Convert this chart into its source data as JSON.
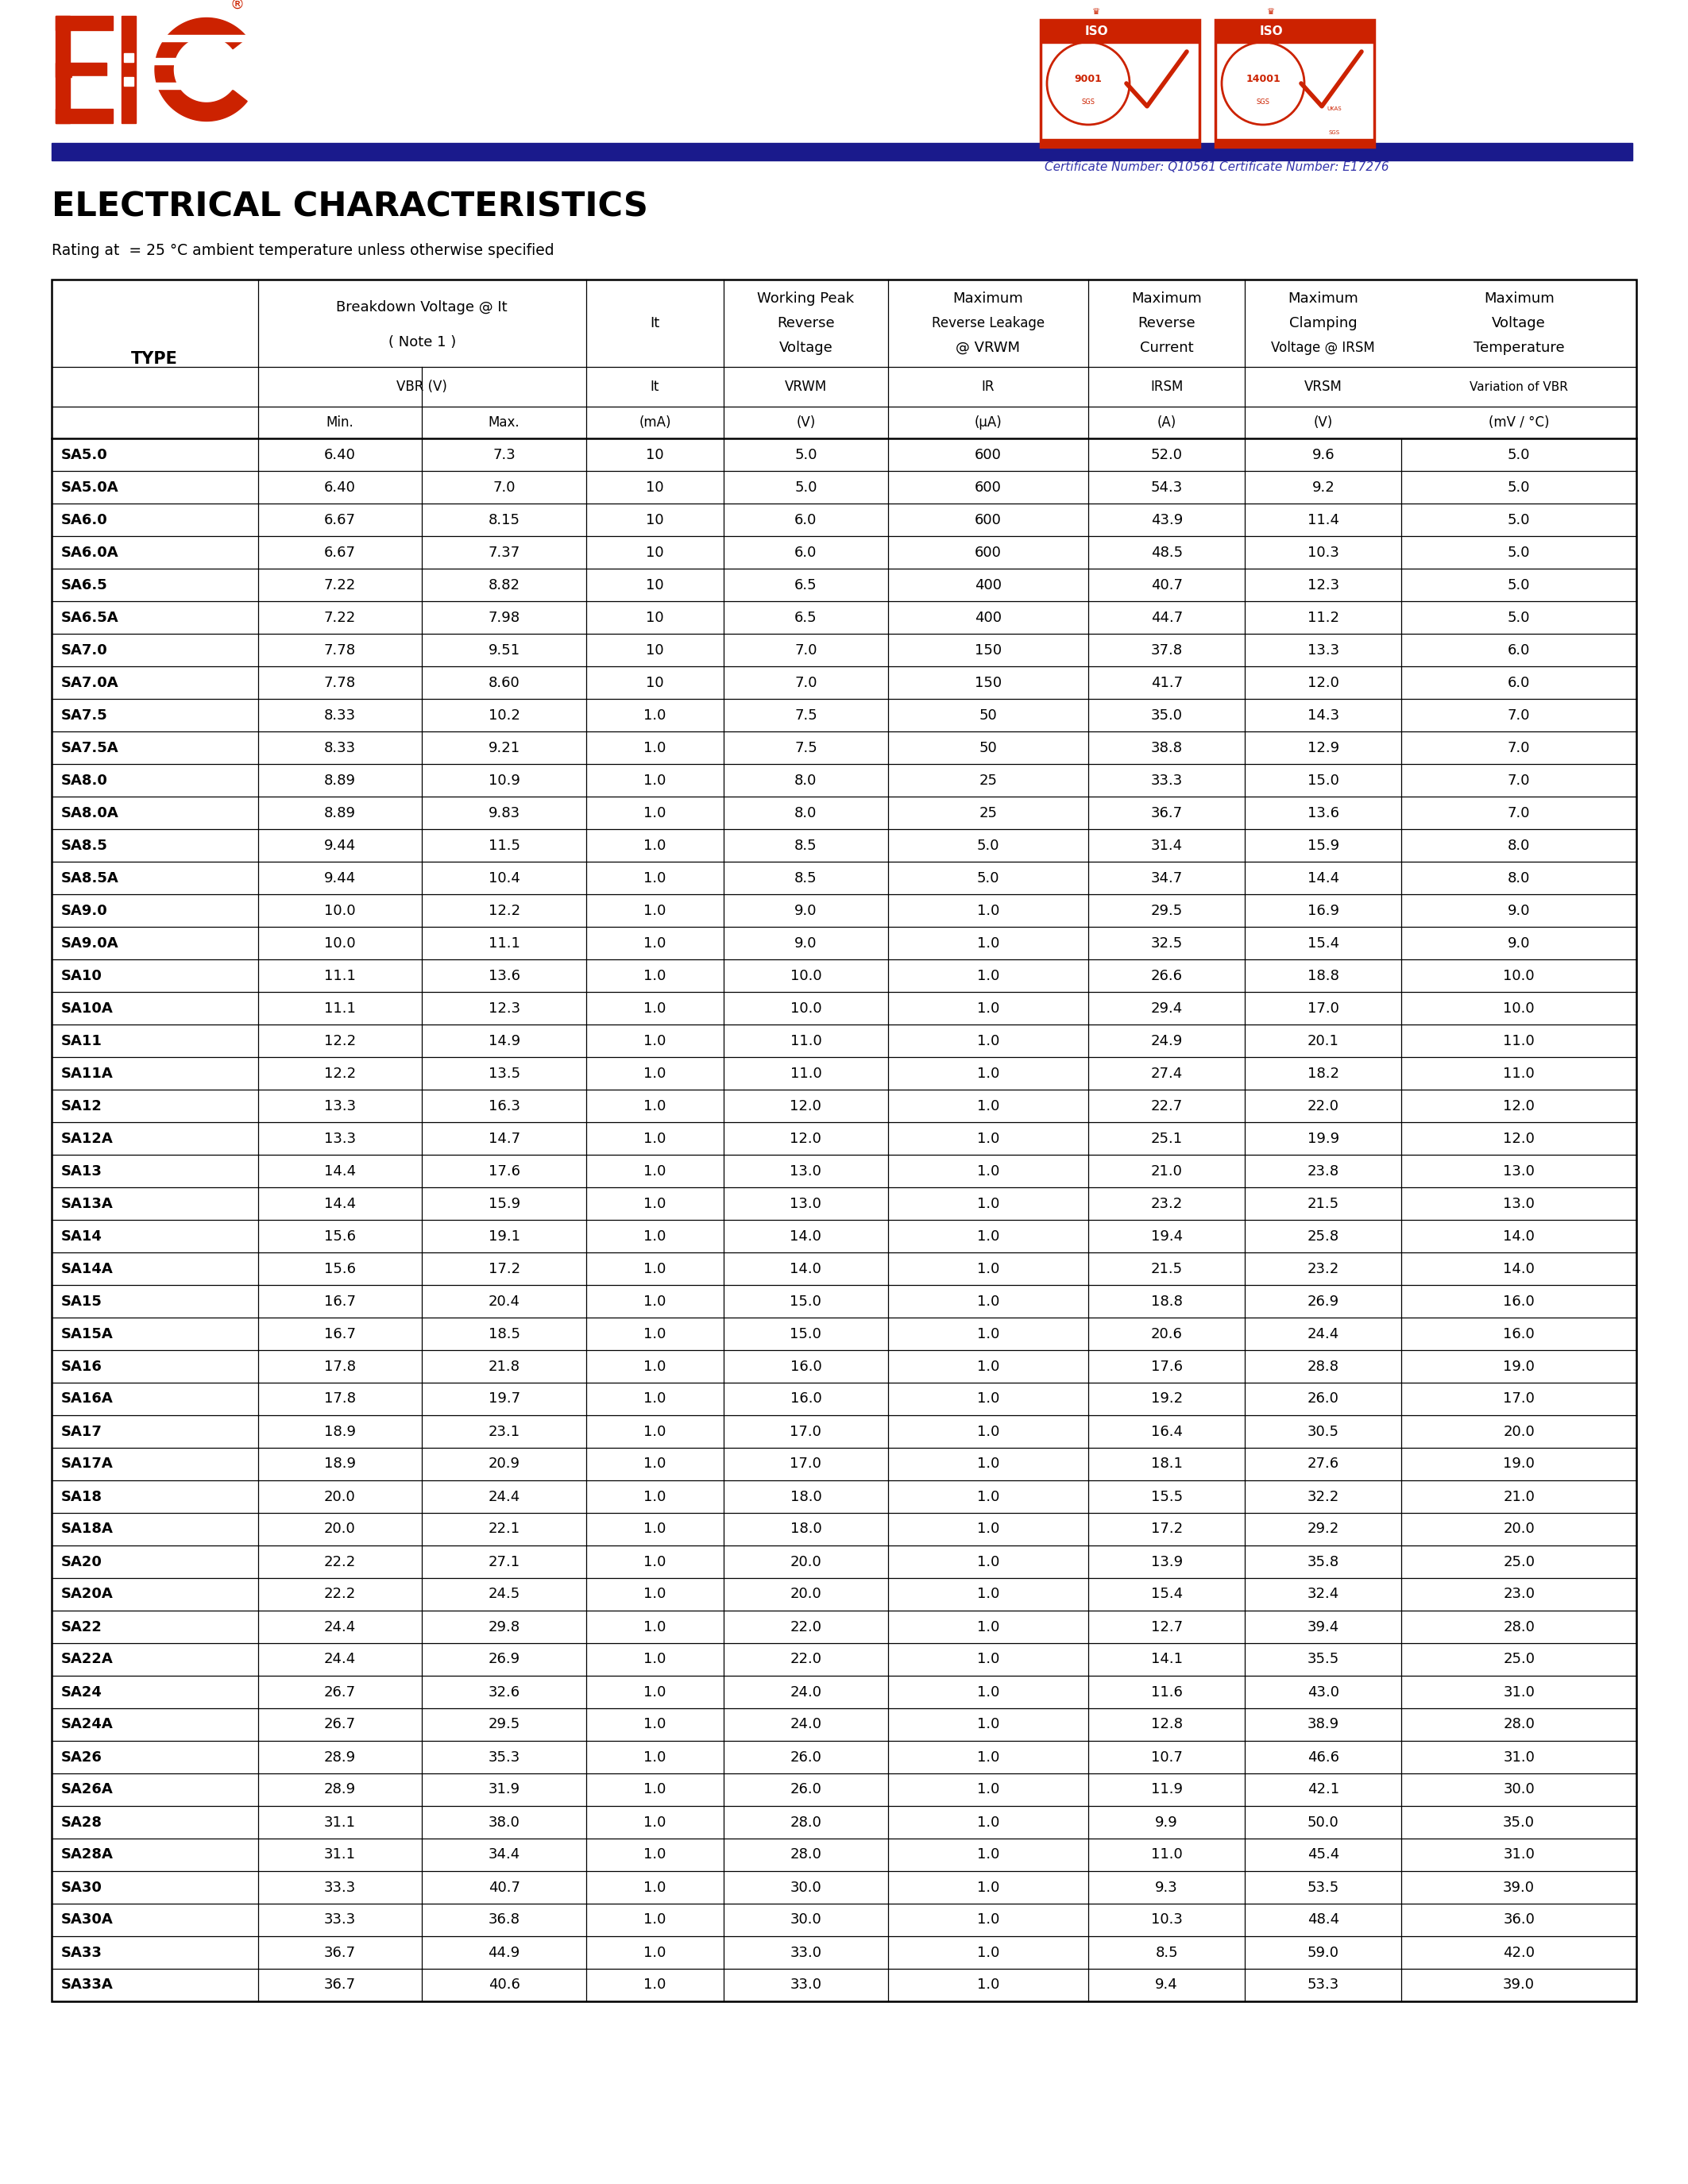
{
  "title": "ELECTRICAL CHARACTERISTICS",
  "subtitle": "Rating at  = 25 °C ambient temperature unless otherwise specified",
  "page_bg": "#ffffff",
  "header_bar_color": "#1a1a8c",
  "table_data": [
    [
      "SA5.0",
      "6.40",
      "7.3",
      "10",
      "5.0",
      "600",
      "52.0",
      "9.6",
      "5.0"
    ],
    [
      "SA5.0A",
      "6.40",
      "7.0",
      "10",
      "5.0",
      "600",
      "54.3",
      "9.2",
      "5.0"
    ],
    [
      "SA6.0",
      "6.67",
      "8.15",
      "10",
      "6.0",
      "600",
      "43.9",
      "11.4",
      "5.0"
    ],
    [
      "SA6.0A",
      "6.67",
      "7.37",
      "10",
      "6.0",
      "600",
      "48.5",
      "10.3",
      "5.0"
    ],
    [
      "SA6.5",
      "7.22",
      "8.82",
      "10",
      "6.5",
      "400",
      "40.7",
      "12.3",
      "5.0"
    ],
    [
      "SA6.5A",
      "7.22",
      "7.98",
      "10",
      "6.5",
      "400",
      "44.7",
      "11.2",
      "5.0"
    ],
    [
      "SA7.0",
      "7.78",
      "9.51",
      "10",
      "7.0",
      "150",
      "37.8",
      "13.3",
      "6.0"
    ],
    [
      "SA7.0A",
      "7.78",
      "8.60",
      "10",
      "7.0",
      "150",
      "41.7",
      "12.0",
      "6.0"
    ],
    [
      "SA7.5",
      "8.33",
      "10.2",
      "1.0",
      "7.5",
      "50",
      "35.0",
      "14.3",
      "7.0"
    ],
    [
      "SA7.5A",
      "8.33",
      "9.21",
      "1.0",
      "7.5",
      "50",
      "38.8",
      "12.9",
      "7.0"
    ],
    [
      "SA8.0",
      "8.89",
      "10.9",
      "1.0",
      "8.0",
      "25",
      "33.3",
      "15.0",
      "7.0"
    ],
    [
      "SA8.0A",
      "8.89",
      "9.83",
      "1.0",
      "8.0",
      "25",
      "36.7",
      "13.6",
      "7.0"
    ],
    [
      "SA8.5",
      "9.44",
      "11.5",
      "1.0",
      "8.5",
      "5.0",
      "31.4",
      "15.9",
      "8.0"
    ],
    [
      "SA8.5A",
      "9.44",
      "10.4",
      "1.0",
      "8.5",
      "5.0",
      "34.7",
      "14.4",
      "8.0"
    ],
    [
      "SA9.0",
      "10.0",
      "12.2",
      "1.0",
      "9.0",
      "1.0",
      "29.5",
      "16.9",
      "9.0"
    ],
    [
      "SA9.0A",
      "10.0",
      "11.1",
      "1.0",
      "9.0",
      "1.0",
      "32.5",
      "15.4",
      "9.0"
    ],
    [
      "SA10",
      "11.1",
      "13.6",
      "1.0",
      "10.0",
      "1.0",
      "26.6",
      "18.8",
      "10.0"
    ],
    [
      "SA10A",
      "11.1",
      "12.3",
      "1.0",
      "10.0",
      "1.0",
      "29.4",
      "17.0",
      "10.0"
    ],
    [
      "SA11",
      "12.2",
      "14.9",
      "1.0",
      "11.0",
      "1.0",
      "24.9",
      "20.1",
      "11.0"
    ],
    [
      "SA11A",
      "12.2",
      "13.5",
      "1.0",
      "11.0",
      "1.0",
      "27.4",
      "18.2",
      "11.0"
    ],
    [
      "SA12",
      "13.3",
      "16.3",
      "1.0",
      "12.0",
      "1.0",
      "22.7",
      "22.0",
      "12.0"
    ],
    [
      "SA12A",
      "13.3",
      "14.7",
      "1.0",
      "12.0",
      "1.0",
      "25.1",
      "19.9",
      "12.0"
    ],
    [
      "SA13",
      "14.4",
      "17.6",
      "1.0",
      "13.0",
      "1.0",
      "21.0",
      "23.8",
      "13.0"
    ],
    [
      "SA13A",
      "14.4",
      "15.9",
      "1.0",
      "13.0",
      "1.0",
      "23.2",
      "21.5",
      "13.0"
    ],
    [
      "SA14",
      "15.6",
      "19.1",
      "1.0",
      "14.0",
      "1.0",
      "19.4",
      "25.8",
      "14.0"
    ],
    [
      "SA14A",
      "15.6",
      "17.2",
      "1.0",
      "14.0",
      "1.0",
      "21.5",
      "23.2",
      "14.0"
    ],
    [
      "SA15",
      "16.7",
      "20.4",
      "1.0",
      "15.0",
      "1.0",
      "18.8",
      "26.9",
      "16.0"
    ],
    [
      "SA15A",
      "16.7",
      "18.5",
      "1.0",
      "15.0",
      "1.0",
      "20.6",
      "24.4",
      "16.0"
    ],
    [
      "SA16",
      "17.8",
      "21.8",
      "1.0",
      "16.0",
      "1.0",
      "17.6",
      "28.8",
      "19.0"
    ],
    [
      "SA16A",
      "17.8",
      "19.7",
      "1.0",
      "16.0",
      "1.0",
      "19.2",
      "26.0",
      "17.0"
    ],
    [
      "SA17",
      "18.9",
      "23.1",
      "1.0",
      "17.0",
      "1.0",
      "16.4",
      "30.5",
      "20.0"
    ],
    [
      "SA17A",
      "18.9",
      "20.9",
      "1.0",
      "17.0",
      "1.0",
      "18.1",
      "27.6",
      "19.0"
    ],
    [
      "SA18",
      "20.0",
      "24.4",
      "1.0",
      "18.0",
      "1.0",
      "15.5",
      "32.2",
      "21.0"
    ],
    [
      "SA18A",
      "20.0",
      "22.1",
      "1.0",
      "18.0",
      "1.0",
      "17.2",
      "29.2",
      "20.0"
    ],
    [
      "SA20",
      "22.2",
      "27.1",
      "1.0",
      "20.0",
      "1.0",
      "13.9",
      "35.8",
      "25.0"
    ],
    [
      "SA20A",
      "22.2",
      "24.5",
      "1.0",
      "20.0",
      "1.0",
      "15.4",
      "32.4",
      "23.0"
    ],
    [
      "SA22",
      "24.4",
      "29.8",
      "1.0",
      "22.0",
      "1.0",
      "12.7",
      "39.4",
      "28.0"
    ],
    [
      "SA22A",
      "24.4",
      "26.9",
      "1.0",
      "22.0",
      "1.0",
      "14.1",
      "35.5",
      "25.0"
    ],
    [
      "SA24",
      "26.7",
      "32.6",
      "1.0",
      "24.0",
      "1.0",
      "11.6",
      "43.0",
      "31.0"
    ],
    [
      "SA24A",
      "26.7",
      "29.5",
      "1.0",
      "24.0",
      "1.0",
      "12.8",
      "38.9",
      "28.0"
    ],
    [
      "SA26",
      "28.9",
      "35.3",
      "1.0",
      "26.0",
      "1.0",
      "10.7",
      "46.6",
      "31.0"
    ],
    [
      "SA26A",
      "28.9",
      "31.9",
      "1.0",
      "26.0",
      "1.0",
      "11.9",
      "42.1",
      "30.0"
    ],
    [
      "SA28",
      "31.1",
      "38.0",
      "1.0",
      "28.0",
      "1.0",
      "9.9",
      "50.0",
      "35.0"
    ],
    [
      "SA28A",
      "31.1",
      "34.4",
      "1.0",
      "28.0",
      "1.0",
      "11.0",
      "45.4",
      "31.0"
    ],
    [
      "SA30",
      "33.3",
      "40.7",
      "1.0",
      "30.0",
      "1.0",
      "9.3",
      "53.5",
      "39.0"
    ],
    [
      "SA30A",
      "33.3",
      "36.8",
      "1.0",
      "30.0",
      "1.0",
      "10.3",
      "48.4",
      "36.0"
    ],
    [
      "SA33",
      "36.7",
      "44.9",
      "1.0",
      "33.0",
      "1.0",
      "8.5",
      "59.0",
      "42.0"
    ],
    [
      "SA33A",
      "36.7",
      "40.6",
      "1.0",
      "33.0",
      "1.0",
      "9.4",
      "53.3",
      "39.0"
    ]
  ],
  "logo_color": "#cc2200",
  "cert_text_color": "#3333aa"
}
